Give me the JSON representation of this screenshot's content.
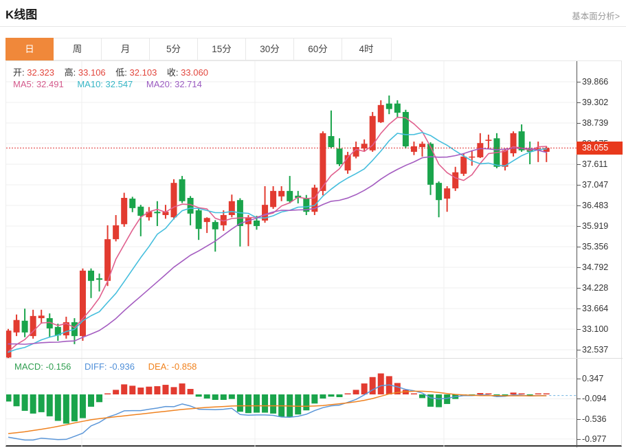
{
  "header": {
    "title": "K线图",
    "link": "基本面分析>"
  },
  "toolbar": {
    "tabs": [
      "日",
      "周",
      "月",
      "5分",
      "15分",
      "30分",
      "60分",
      "4时"
    ],
    "selected": "日"
  },
  "ohlc_legend": {
    "open_label": "开:",
    "open": "32.323",
    "high_label": "高:",
    "high": "33.106",
    "low_label": "低:",
    "low": "32.103",
    "close_label": "收:",
    "close": "33.060"
  },
  "ma_legend": {
    "ma5": "MA5: 32.491",
    "ma10": "MA10: 32.547",
    "ma20": "MA20: 32.714"
  },
  "macd_legend": {
    "macd": "MACD: -0.156",
    "diff": "DIFF: -0.936",
    "dea": "DEA: -0.858"
  },
  "price_badge": "38.055",
  "colors": {
    "up": "#e23b30",
    "down": "#1aa44b",
    "ma5": "#e0608e",
    "ma10": "#45bedd",
    "ma20": "#a45cc0",
    "diff_line": "#5b96d8",
    "dea_line": "#ef8220",
    "grid": "#efefef",
    "price_line": "#e13232",
    "badge": "#e8391c",
    "tab_selected": "#f0883a",
    "macd_forecast_dash": "#6fb3e0"
  },
  "chart_data": {
    "type": "candlestick",
    "title": "K线图 日K with MA5/MA10/MA20 and MACD",
    "y_axis_labels": [
      "39.866",
      "39.302",
      "38.739",
      "38.175",
      "37.611",
      "37.047",
      "36.483",
      "35.919",
      "35.356",
      "34.792",
      "34.228",
      "33.664",
      "33.100",
      "32.537"
    ],
    "y_top_value": 39.866,
    "y_step": 0.5638,
    "macd_axis_labels": [
      "0.347",
      "-0.094",
      "-0.536",
      "-0.977"
    ],
    "price_line_value": 38.055,
    "ma_periods": [
      5,
      10,
      20
    ],
    "ma_seed": [
      33.3,
      33.2,
      33.1,
      33.0,
      32.9,
      32.85,
      32.8,
      32.75,
      32.7,
      32.6,
      32.55,
      32.5,
      32.45,
      32.4,
      32.38,
      32.36,
      32.34,
      32.33,
      32.32
    ],
    "candles": [
      [
        32.323,
        33.106,
        32.103,
        33.06
      ],
      [
        33.01,
        33.5,
        32.91,
        33.35
      ],
      [
        33.33,
        33.66,
        32.88,
        33.01
      ],
      [
        32.91,
        33.63,
        32.84,
        33.46
      ],
      [
        33.4,
        33.63,
        33.25,
        33.47
      ],
      [
        33.4,
        33.53,
        32.87,
        33.12
      ],
      [
        33.16,
        33.25,
        32.78,
        32.93
      ],
      [
        32.93,
        33.44,
        32.84,
        33.29
      ],
      [
        33.29,
        33.4,
        32.69,
        32.91
      ],
      [
        32.91,
        34.76,
        32.78,
        34.7
      ],
      [
        34.7,
        34.76,
        33.95,
        34.42
      ],
      [
        34.49,
        34.62,
        34.13,
        34.45
      ],
      [
        34.42,
        35.94,
        34.28,
        35.56
      ],
      [
        35.56,
        36.22,
        35.5,
        35.94
      ],
      [
        35.97,
        36.83,
        35.9,
        36.69
      ],
      [
        36.67,
        36.72,
        36.3,
        36.41
      ],
      [
        36.45,
        36.5,
        35.64,
        36.2
      ],
      [
        36.16,
        36.44,
        36.07,
        36.31
      ],
      [
        36.31,
        36.6,
        35.92,
        36.27
      ],
      [
        36.22,
        36.5,
        36.12,
        36.31
      ],
      [
        36.16,
        37.2,
        36.1,
        37.1
      ],
      [
        37.2,
        37.29,
        36.55,
        36.6
      ],
      [
        36.69,
        36.74,
        35.94,
        36.26
      ],
      [
        36.35,
        36.4,
        35.54,
        35.84
      ],
      [
        36.03,
        36.16,
        35.73,
        36.14
      ],
      [
        36.03,
        36.08,
        35.22,
        35.83
      ],
      [
        35.94,
        36.35,
        35.79,
        36.22
      ],
      [
        36.22,
        36.78,
        36.16,
        36.6
      ],
      [
        36.63,
        36.68,
        35.36,
        35.92
      ],
      [
        35.97,
        36.22,
        35.37,
        36.16
      ],
      [
        36.07,
        36.2,
        35.82,
        35.92
      ],
      [
        36.07,
        37.01,
        36.01,
        36.5
      ],
      [
        36.44,
        37.01,
        36.39,
        36.88
      ],
      [
        36.73,
        37.01,
        36.6,
        36.88
      ],
      [
        36.88,
        37.29,
        36.54,
        36.6
      ],
      [
        36.75,
        36.88,
        36.54,
        36.69
      ],
      [
        36.67,
        36.77,
        36.22,
        36.31
      ],
      [
        36.31,
        37.05,
        36.22,
        36.97
      ],
      [
        36.88,
        38.51,
        36.76,
        38.46
      ],
      [
        38.38,
        39.08,
        38.04,
        38.08
      ],
      [
        38.04,
        38.32,
        37.56,
        37.61
      ],
      [
        37.44,
        37.95,
        37.35,
        37.86
      ],
      [
        37.82,
        38.23,
        37.77,
        38.08
      ],
      [
        38.04,
        38.29,
        37.95,
        38.17
      ],
      [
        37.99,
        39.04,
        37.95,
        38.93
      ],
      [
        38.76,
        39.36,
        38.74,
        39.23
      ],
      [
        39.27,
        39.49,
        38.98,
        39.12
      ],
      [
        39.27,
        39.36,
        38.89,
        39.02
      ],
      [
        39.04,
        39.1,
        38.04,
        38.1
      ],
      [
        37.95,
        38.23,
        37.86,
        38.1
      ],
      [
        38.08,
        38.23,
        37.82,
        38.17
      ],
      [
        38.17,
        38.21,
        36.77,
        37.05
      ],
      [
        37.1,
        37.14,
        36.16,
        36.63
      ],
      [
        36.67,
        37.01,
        36.31,
        36.95
      ],
      [
        36.95,
        37.54,
        36.88,
        37.39
      ],
      [
        37.35,
        37.91,
        37.29,
        37.82
      ],
      [
        37.8,
        37.99,
        37.57,
        37.82
      ],
      [
        37.8,
        38.46,
        37.78,
        38.19
      ],
      [
        38.25,
        38.42,
        38.04,
        38.28
      ],
      [
        38.32,
        38.46,
        37.5,
        37.54
      ],
      [
        37.54,
        38.04,
        37.44,
        37.99
      ],
      [
        37.91,
        38.51,
        37.82,
        38.46
      ],
      [
        38.51,
        38.7,
        37.95,
        37.99
      ],
      [
        38.04,
        38.23,
        37.61,
        37.95
      ],
      [
        37.99,
        38.23,
        37.67,
        38.04
      ],
      [
        37.95,
        38.1,
        37.67,
        38.055
      ]
    ],
    "diff": [
      -0.936,
      -0.97,
      -1.0,
      -1.0,
      -0.96,
      -0.975,
      -0.99,
      -0.985,
      -0.92,
      -0.85,
      -0.69,
      -0.615,
      -0.5,
      -0.44,
      -0.36,
      -0.355,
      -0.355,
      -0.325,
      -0.3,
      -0.265,
      -0.27,
      -0.21,
      -0.255,
      -0.325,
      -0.33,
      -0.335,
      -0.325,
      -0.305,
      -0.44,
      -0.455,
      -0.45,
      -0.45,
      -0.46,
      -0.495,
      -0.5,
      -0.48,
      -0.435,
      -0.355,
      -0.29,
      -0.25,
      -0.235,
      -0.175,
      -0.11,
      -0.01,
      0.1,
      0.19,
      0.21,
      0.165,
      0.11,
      0.08,
      0.03,
      -0.075,
      -0.1,
      -0.085,
      -0.05,
      -0.025,
      -0.025,
      -0.01,
      -0.015,
      -0.05,
      -0.04,
      -0.01,
      -0.02,
      -0.035,
      -0.025,
      -0.025
    ],
    "dea": [
      -0.858,
      -0.84,
      -0.82,
      -0.79,
      -0.765,
      -0.735,
      -0.7,
      -0.665,
      -0.625,
      -0.59,
      -0.555,
      -0.53,
      -0.51,
      -0.49,
      -0.47,
      -0.45,
      -0.43,
      -0.41,
      -0.39,
      -0.37,
      -0.35,
      -0.33,
      -0.315,
      -0.3,
      -0.285,
      -0.275,
      -0.265,
      -0.255,
      -0.25,
      -0.25,
      -0.25,
      -0.25,
      -0.25,
      -0.25,
      -0.255,
      -0.26,
      -0.26,
      -0.255,
      -0.245,
      -0.225,
      -0.205,
      -0.185,
      -0.16,
      -0.13,
      -0.09,
      -0.04,
      0.01,
      0.04,
      0.06,
      0.07,
      0.07,
      0.06,
      0.04,
      0.02,
      0.0,
      -0.01,
      -0.02,
      -0.025,
      -0.025,
      -0.025,
      -0.03,
      -0.03,
      -0.03,
      -0.03,
      -0.03,
      -0.03
    ],
    "macd_note": "histogram = (diff - dea) * 2",
    "grid_vertical_x": [
      110,
      362,
      637
    ]
  }
}
